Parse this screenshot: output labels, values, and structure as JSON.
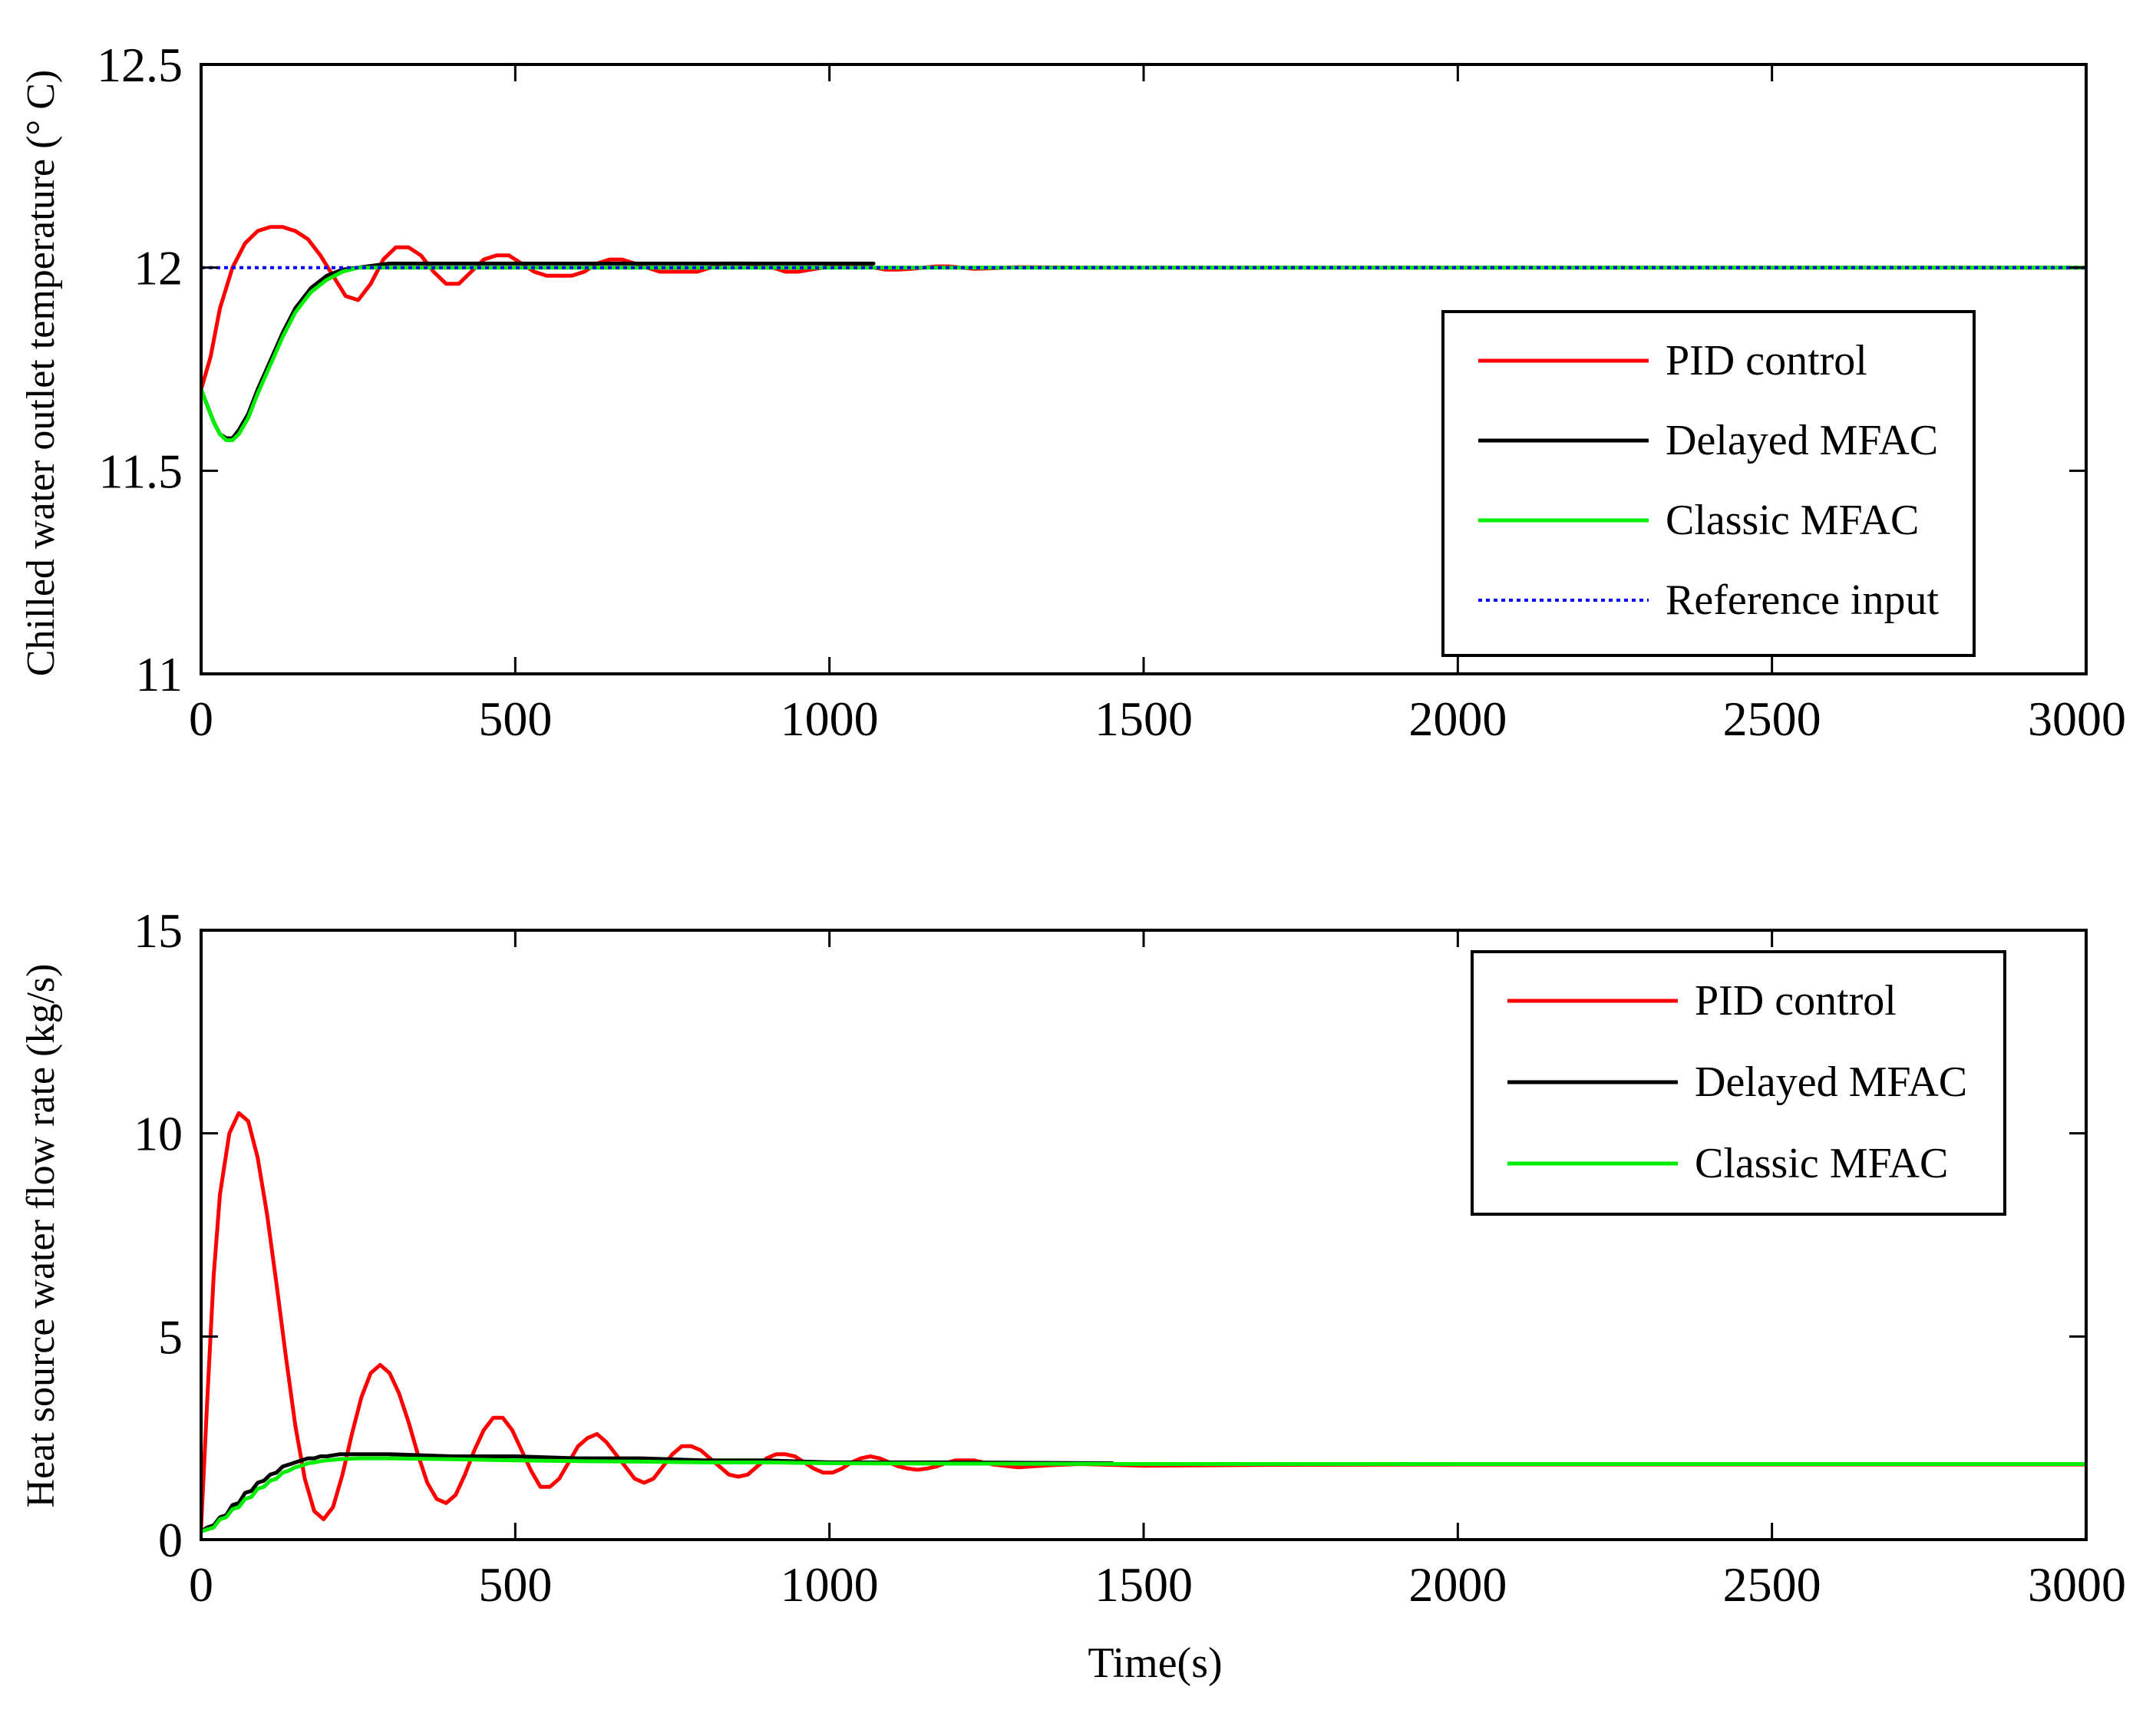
{
  "chart_data": [
    {
      "type": "line",
      "title": "",
      "xlabel": "",
      "ylabel": "Chilled water outlet temperature (° C)",
      "xlim": [
        0,
        3000
      ],
      "ylim": [
        11,
        12.5
      ],
      "xticks": [
        0,
        500,
        1000,
        1500,
        2000,
        2500,
        3000
      ],
      "yticks": [
        11,
        11.5,
        12,
        12.5
      ],
      "xtick_labels": [
        "0",
        "500",
        "1000",
        "1500",
        "2000",
        "2500",
        "3000"
      ],
      "ytick_labels": [
        "11",
        "11.5",
        "12",
        "12.5"
      ],
      "legend_position": "lower-right",
      "series": [
        {
          "name": "PID control",
          "color": "#ff0000",
          "style": "solid",
          "x": [
            0,
            15,
            30,
            50,
            70,
            90,
            110,
            130,
            150,
            170,
            190,
            210,
            230,
            250,
            270,
            290,
            310,
            330,
            350,
            370,
            390,
            410,
            430,
            450,
            470,
            490,
            510,
            530,
            550,
            570,
            590,
            610,
            630,
            650,
            670,
            690,
            710,
            730,
            750,
            770,
            790,
            810,
            830,
            850,
            870,
            890,
            910,
            930,
            950,
            970,
            990,
            1010,
            1030,
            1050,
            1070,
            1090,
            1110,
            1130,
            1150,
            1170,
            1190,
            1210,
            1230,
            1250,
            1300,
            1400,
            1500,
            1700,
            2000,
            2500,
            3000
          ],
          "y": [
            11.7,
            11.78,
            11.9,
            12.0,
            12.06,
            12.09,
            12.1,
            12.1,
            12.09,
            12.07,
            12.03,
            11.98,
            11.93,
            11.92,
            11.96,
            12.02,
            12.05,
            12.05,
            12.03,
            11.99,
            11.96,
            11.96,
            11.99,
            12.02,
            12.03,
            12.03,
            12.01,
            11.99,
            11.98,
            11.98,
            11.98,
            11.99,
            12.01,
            12.02,
            12.02,
            12.01,
            12.0,
            11.99,
            11.99,
            11.99,
            11.99,
            12.0,
            12.01,
            12.01,
            12.01,
            12.0,
            12.0,
            11.99,
            11.99,
            11.995,
            12.0,
            12.005,
            12.006,
            12.005,
            12.0,
            11.995,
            11.995,
            11.997,
            12.0,
            12.003,
            12.003,
            12.0,
            11.997,
            11.998,
            12.001,
            12.0,
            12.0,
            12.0,
            12.0,
            12.0,
            12.0
          ]
        },
        {
          "name": "Delayed MFAC",
          "color": "#000000",
          "style": "solid",
          "x": [
            0,
            10,
            20,
            30,
            40,
            50,
            60,
            75,
            90,
            110,
            130,
            150,
            175,
            200,
            225,
            250,
            275,
            300,
            340,
            400,
            500,
            600,
            700,
            800,
            900,
            1000,
            1070
          ],
          "y": [
            11.7,
            11.66,
            11.62,
            11.59,
            11.58,
            11.58,
            11.6,
            11.64,
            11.7,
            11.77,
            11.84,
            11.9,
            11.95,
            11.98,
            11.995,
            12.0,
            12.005,
            12.01,
            12.01,
            12.01,
            12.01,
            12.01,
            12.01,
            12.01,
            12.01,
            12.01,
            12.01
          ]
        },
        {
          "name": "Classic MFAC",
          "color": "#00ee00",
          "style": "solid",
          "x": [
            0,
            10,
            20,
            30,
            40,
            50,
            60,
            75,
            90,
            110,
            130,
            150,
            175,
            200,
            225,
            250,
            275,
            300,
            340,
            400,
            600,
            1000,
            1500,
            2000,
            2500,
            3000
          ],
          "y": [
            11.7,
            11.66,
            11.62,
            11.59,
            11.575,
            11.575,
            11.59,
            11.63,
            11.69,
            11.76,
            11.83,
            11.89,
            11.94,
            11.97,
            11.99,
            12.0,
            12.0,
            12.0,
            12.0,
            12.0,
            12.0,
            12.0,
            12.0,
            12.0,
            12.0,
            12.0
          ]
        },
        {
          "name": "Reference input",
          "color": "#0000ff",
          "style": "dotted",
          "x": [
            0,
            3000
          ],
          "y": [
            12,
            12
          ]
        }
      ]
    },
    {
      "type": "line",
      "title": "",
      "xlabel": "Time(s)",
      "ylabel": "Heat source water flow rate (kg/s)",
      "xlim": [
        0,
        3000
      ],
      "ylim": [
        0,
        15
      ],
      "xticks": [
        0,
        500,
        1000,
        1500,
        2000,
        2500,
        3000
      ],
      "yticks": [
        0,
        5,
        10,
        15
      ],
      "xtick_labels": [
        "0",
        "500",
        "1000",
        "1500",
        "2000",
        "2500",
        "3000"
      ],
      "ytick_labels": [
        "0",
        "5",
        "10",
        "15"
      ],
      "legend_position": "top-right",
      "series": [
        {
          "name": "PID control",
          "color": "#ff0000",
          "style": "solid",
          "x": [
            0,
            10,
            20,
            30,
            45,
            60,
            75,
            90,
            105,
            120,
            135,
            150,
            165,
            180,
            195,
            210,
            225,
            240,
            255,
            270,
            285,
            300,
            315,
            330,
            345,
            360,
            375,
            390,
            405,
            420,
            435,
            450,
            465,
            480,
            495,
            510,
            525,
            540,
            555,
            570,
            585,
            600,
            615,
            630,
            645,
            660,
            675,
            690,
            705,
            720,
            735,
            750,
            765,
            780,
            795,
            810,
            825,
            840,
            855,
            870,
            885,
            900,
            915,
            930,
            945,
            960,
            975,
            990,
            1005,
            1020,
            1035,
            1050,
            1065,
            1080,
            1095,
            1110,
            1125,
            1140,
            1155,
            1170,
            1185,
            1200,
            1230,
            1260,
            1300,
            1350,
            1400,
            1500,
            1700,
            2000,
            3000
          ],
          "y": [
            0.3,
            3.5,
            6.5,
            8.5,
            10.0,
            10.5,
            10.3,
            9.4,
            8.0,
            6.3,
            4.5,
            2.8,
            1.5,
            0.7,
            0.5,
            0.8,
            1.6,
            2.6,
            3.5,
            4.1,
            4.3,
            4.1,
            3.6,
            2.9,
            2.1,
            1.4,
            1.0,
            0.9,
            1.1,
            1.6,
            2.2,
            2.7,
            3.0,
            3.0,
            2.7,
            2.2,
            1.7,
            1.3,
            1.3,
            1.5,
            1.9,
            2.3,
            2.5,
            2.6,
            2.4,
            2.1,
            1.8,
            1.5,
            1.4,
            1.5,
            1.8,
            2.1,
            2.3,
            2.3,
            2.2,
            2.0,
            1.8,
            1.6,
            1.55,
            1.6,
            1.8,
            2.0,
            2.1,
            2.1,
            2.05,
            1.9,
            1.75,
            1.65,
            1.65,
            1.75,
            1.9,
            2.0,
            2.05,
            2.0,
            1.9,
            1.8,
            1.75,
            1.72,
            1.75,
            1.8,
            1.88,
            1.95,
            1.95,
            1.85,
            1.78,
            1.83,
            1.86,
            1.82,
            1.84,
            1.85,
            1.85
          ]
        },
        {
          "name": "Delayed MFAC",
          "color": "#000000",
          "style": "solid",
          "x": [
            0,
            10,
            20,
            30,
            40,
            50,
            60,
            70,
            80,
            90,
            100,
            110,
            120,
            130,
            140,
            150,
            160,
            170,
            180,
            190,
            200,
            220,
            250,
            300,
            400,
            500,
            600,
            700,
            800,
            900,
            1000,
            1200,
            1450
          ],
          "y": [
            0.2,
            0.3,
            0.35,
            0.55,
            0.6,
            0.85,
            0.9,
            1.15,
            1.2,
            1.4,
            1.45,
            1.6,
            1.65,
            1.8,
            1.85,
            1.9,
            1.95,
            2.0,
            2.0,
            2.05,
            2.05,
            2.1,
            2.1,
            2.1,
            2.05,
            2.05,
            2.0,
            2.0,
            1.95,
            1.95,
            1.9,
            1.9,
            1.88
          ]
        },
        {
          "name": "Classic MFAC",
          "color": "#00ee00",
          "style": "solid",
          "x": [
            0,
            10,
            20,
            30,
            40,
            50,
            60,
            70,
            80,
            90,
            100,
            110,
            120,
            130,
            140,
            150,
            160,
            170,
            180,
            190,
            200,
            220,
            250,
            300,
            400,
            500,
            600,
            700,
            800,
            900,
            1000,
            1200,
            1500,
            2000,
            2500,
            3000
          ],
          "y": [
            0.2,
            0.25,
            0.3,
            0.5,
            0.55,
            0.75,
            0.8,
            1.0,
            1.05,
            1.25,
            1.3,
            1.45,
            1.5,
            1.65,
            1.7,
            1.78,
            1.82,
            1.88,
            1.9,
            1.93,
            1.95,
            1.98,
            2.0,
            2.0,
            1.98,
            1.95,
            1.93,
            1.92,
            1.9,
            1.9,
            1.88,
            1.87,
            1.86,
            1.86,
            1.86,
            1.86
          ]
        }
      ]
    }
  ]
}
